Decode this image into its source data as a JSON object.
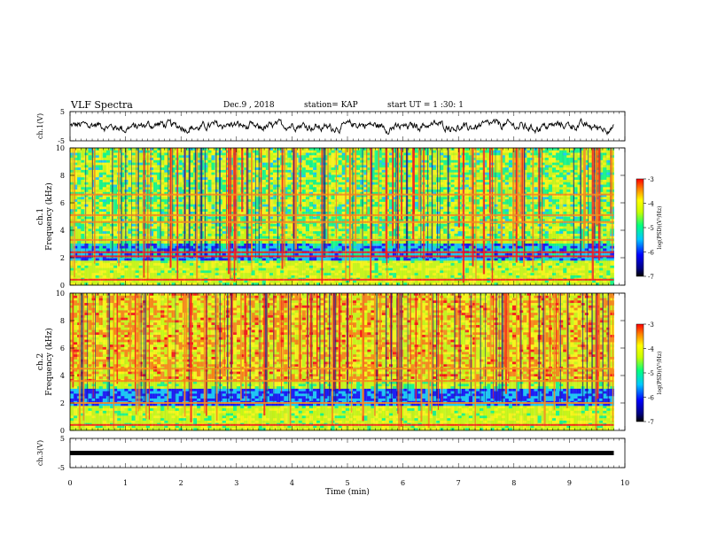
{
  "header": {
    "title": "VLF Spectra",
    "date": "Dec.9 , 2018",
    "station": "station= KAP",
    "start_time": "start UT = 1 :30: 1"
  },
  "colors": {
    "waveform": "#000000",
    "colormap": [
      "#000080",
      "#0000ff",
      "#00c8ff",
      "#00ff80",
      "#c8ff00",
      "#ffff00",
      "#ff8000",
      "#ff0000"
    ]
  },
  "chart_data": [
    {
      "type": "line",
      "name": "ch.1 waveform",
      "ylabel": "ch.1(V)",
      "ylim": [
        -5,
        5
      ],
      "yticks": [
        "5",
        "-5"
      ],
      "xlim": [
        0,
        10
      ],
      "x_data_range": [
        0,
        9.8
      ],
      "amplitude_range": [
        -2,
        2
      ]
    },
    {
      "type": "heatmap",
      "ylabel_channel": "ch.1",
      "ylabel": "Frequency (kHz)",
      "ylim": [
        0,
        10
      ],
      "yticks": [
        "0",
        "2",
        "4",
        "6",
        "8",
        "10"
      ],
      "xlim": [
        0,
        10
      ],
      "x_data_range": [
        0,
        9.8
      ],
      "colorbar": {
        "label": "log(PSD)(V²/Hz)",
        "range": [
          -7,
          -3
        ],
        "ticks": [
          "-3",
          "-4",
          "-5",
          "-6",
          "-7"
        ]
      },
      "bands_khz": [
        {
          "freq": 0.4,
          "level": -3.4
        },
        {
          "freq": 2.1,
          "level": -3.2
        },
        {
          "freq": 2.4,
          "level": -3.5
        },
        {
          "freq": 3.3,
          "level": -3.6
        },
        {
          "freq": 4.6,
          "level": -3.8
        },
        {
          "freq": 5.1,
          "level": -3.9
        },
        {
          "freq": 6.6,
          "level": -4.0
        }
      ]
    },
    {
      "type": "heatmap",
      "ylabel_channel": "ch.2",
      "ylabel": "Frequency (kHz)",
      "ylim": [
        0,
        10
      ],
      "yticks": [
        "0",
        "2",
        "4",
        "6",
        "8",
        "10"
      ],
      "xlim": [
        0,
        10
      ],
      "x_data_range": [
        0,
        9.8
      ],
      "colorbar": {
        "label": "log(PSD)(V²/Hz)",
        "range": [
          -7,
          -3
        ],
        "ticks": [
          "-3",
          "-4",
          "-5",
          "-6",
          "-7"
        ]
      },
      "bands_khz": [
        {
          "freq": 0.4,
          "level": -3.5
        },
        {
          "freq": 2.0,
          "level": -3.6
        },
        {
          "freq": 3.6,
          "level": -3.8
        },
        {
          "freq": 4.5,
          "level": -3.9
        }
      ]
    },
    {
      "type": "line",
      "name": "ch.3 waveform",
      "ylabel": "ch.3(V)",
      "ylim": [
        -5,
        5
      ],
      "yticks": [
        "5",
        "-5"
      ],
      "xlim": [
        0,
        10
      ],
      "x_data_range": [
        0,
        9.8
      ],
      "constant_value": 0
    }
  ],
  "xaxis": {
    "label": "Time (min)",
    "ticks": [
      "0",
      "1",
      "2",
      "3",
      "4",
      "5",
      "6",
      "7",
      "8",
      "9",
      "10"
    ]
  }
}
